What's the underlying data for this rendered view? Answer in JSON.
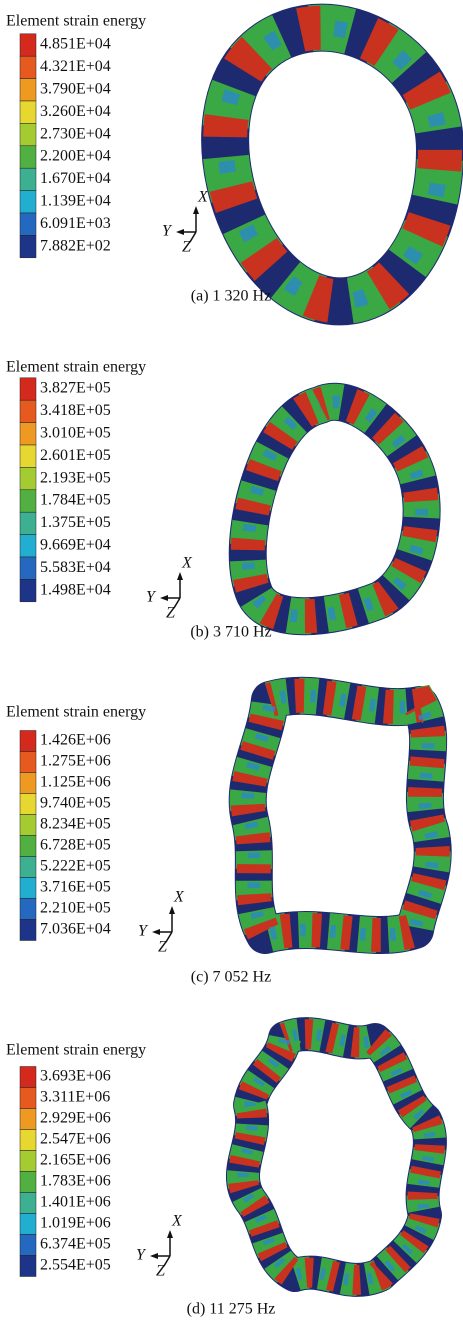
{
  "panels": [
    {
      "legend_title": "Element strain energy",
      "legend_labels": [
        "4.851E+04",
        "4.321E+04",
        "3.790E+04",
        "3.260E+04",
        "2.730E+04",
        "2.200E+04",
        "1.670E+04",
        "1.139E+04",
        "6.091E+03",
        "7.882E+02"
      ],
      "caption": "(a) 1 320 Hz",
      "axes": [
        "X",
        "Y",
        "Z"
      ]
    },
    {
      "legend_title": "Element strain energy",
      "legend_labels": [
        "3.827E+05",
        "3.418E+05",
        "3.010E+05",
        "2.601E+05",
        "2.193E+05",
        "1.784E+05",
        "1.375E+05",
        "9.669E+04",
        "5.583E+04",
        "1.498E+04"
      ],
      "caption": "(b) 3 710 Hz",
      "axes": [
        "X",
        "Y",
        "Z"
      ]
    },
    {
      "legend_title": "Element strain energy",
      "legend_labels": [
        "1.426E+06",
        "1.275E+06",
        "1.125E+06",
        "9.740E+05",
        "8.234E+05",
        "6.728E+05",
        "5.222E+05",
        "3.716E+05",
        "2.210E+05",
        "7.036E+04"
      ],
      "caption": "(c) 7 052 Hz",
      "axes": [
        "X",
        "Y",
        "Z"
      ]
    },
    {
      "legend_title": "Element strain energy",
      "legend_labels": [
        "3.693E+06",
        "3.311E+06",
        "2.929E+06",
        "2.547E+06",
        "2.165E+06",
        "1.783E+06",
        "1.401E+06",
        "1.019E+06",
        "6.374E+05",
        "2.554E+05"
      ],
      "caption": "(d) 11 275 Hz",
      "axes": [
        "X",
        "Y",
        "Z"
      ]
    }
  ]
}
